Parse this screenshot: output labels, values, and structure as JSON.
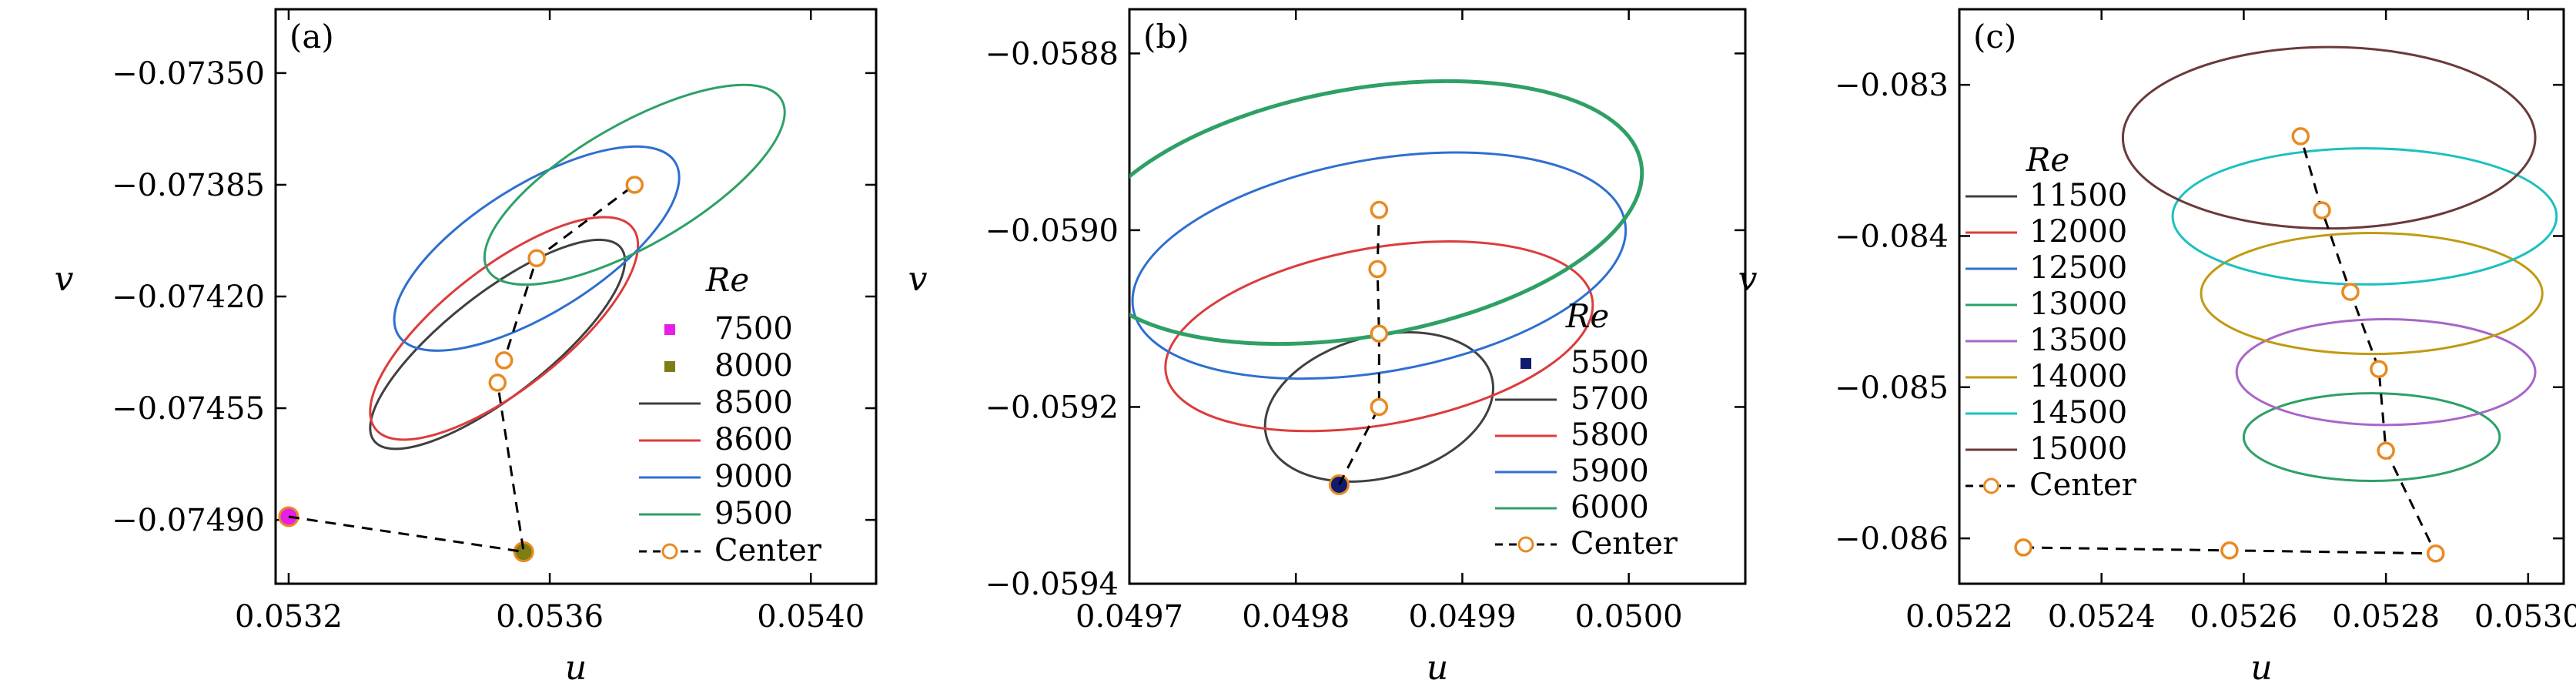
{
  "figure": {
    "center_label": "Center"
  },
  "chart_data": [
    {
      "type": "line",
      "panel_label": "(a)",
      "xlabel": "u",
      "ylabel": "v",
      "xlim": [
        0.05318,
        0.0541
      ],
      "ylim": [
        -0.0751,
        -0.0733
      ],
      "xticks": [
        0.0532,
        0.0536,
        0.054
      ],
      "xtick_labels": [
        "0.0532",
        "0.0536",
        "0.0540"
      ],
      "yticks": [
        -0.0735,
        -0.07385,
        -0.0742,
        -0.07455,
        -0.0749
      ],
      "ytick_labels": [
        "−0.07350",
        "−0.07385",
        "−0.07420",
        "−0.07455",
        "−0.07490"
      ],
      "legend_title": "Re",
      "legend_position": "bottom-right",
      "series": [
        {
          "name": "7500",
          "kind": "point",
          "color": "#e61ee6",
          "x": 0.0532,
          "y": -0.07489
        },
        {
          "name": "8000",
          "kind": "point",
          "color": "#7d7d14",
          "x": 0.05356,
          "y": -0.075
        },
        {
          "name": "8500",
          "kind": "cycle",
          "color": "#404040",
          "cx": 0.05352,
          "cy": -0.07435,
          "rx": 0.00024,
          "ry": 0.00016,
          "rotate_deg": -38
        },
        {
          "name": "8600",
          "kind": "cycle",
          "color": "#dd3c3c",
          "cx": 0.05353,
          "cy": -0.0743,
          "rx": 0.00025,
          "ry": 0.00019,
          "rotate_deg": -38
        },
        {
          "name": "9000",
          "kind": "cycle",
          "color": "#2e6fd0",
          "cx": 0.05358,
          "cy": -0.07405,
          "rx": 0.00025,
          "ry": 0.0002,
          "rotate_deg": -32
        },
        {
          "name": "9500",
          "kind": "cycle",
          "color": "#2ea066",
          "cx": 0.05373,
          "cy": -0.07385,
          "rx": 0.00026,
          "ry": 0.00019,
          "rotate_deg": -30
        }
      ],
      "center": {
        "x": [
          0.0532,
          0.05356,
          0.05352,
          0.05353,
          0.05358,
          0.05373
        ],
        "y": [
          -0.07489,
          -0.075,
          -0.07447,
          -0.0744,
          -0.07408,
          -0.07385
        ]
      }
    },
    {
      "type": "line",
      "panel_label": "(b)",
      "xlabel": "u",
      "ylabel": "v",
      "xlim": [
        0.0497,
        0.05007
      ],
      "ylim": [
        -0.0594,
        -0.05875
      ],
      "xticks": [
        0.0497,
        0.0498,
        0.0499,
        0.05
      ],
      "xtick_labels": [
        "0.0497",
        "0.0498",
        "0.0499",
        "0.0500"
      ],
      "yticks": [
        -0.0588,
        -0.059,
        -0.0592,
        -0.0594
      ],
      "ytick_labels": [
        "−0.0588",
        "−0.0590",
        "−0.0592",
        "−0.0594"
      ],
      "legend_title": "Re",
      "legend_position": "bottom-right",
      "series": [
        {
          "name": "5500",
          "kind": "point",
          "color": "#101a6e",
          "x": 0.049826,
          "y": -0.059288
        },
        {
          "name": "5700",
          "kind": "cycle",
          "color": "#404040",
          "cx": 0.04985,
          "cy": -0.0592,
          "rx": 7e-05,
          "ry": 8e-05,
          "rotate_deg": -15
        },
        {
          "name": "5800",
          "kind": "cycle",
          "color": "#dd3c3c",
          "cx": 0.04985,
          "cy": -0.05912,
          "rx": 0.00013,
          "ry": 0.0001,
          "rotate_deg": -10
        },
        {
          "name": "5900",
          "kind": "cycle",
          "color": "#2e6fd0",
          "cx": 0.04985,
          "cy": -0.05904,
          "rx": 0.00015,
          "ry": 0.00012,
          "rotate_deg": -10
        },
        {
          "name": "6000",
          "kind": "cycle",
          "color": "#2ea066",
          "cx": 0.04984,
          "cy": -0.05898,
          "rx": 0.00017,
          "ry": 0.00014,
          "rotate_deg": -10
        }
      ],
      "center": {
        "x": [
          0.049826,
          0.04985,
          0.04985,
          0.049849,
          0.04985
        ],
        "y": [
          -0.059288,
          -0.0592,
          -0.059117,
          -0.059044,
          -0.058977
        ]
      }
    },
    {
      "type": "line",
      "panel_label": "(c)",
      "xlabel": "u",
      "ylabel": "v",
      "xlim": [
        0.0522,
        0.05305
      ],
      "ylim": [
        -0.0863,
        -0.0825
      ],
      "xticks": [
        0.0522,
        0.0524,
        0.0526,
        0.0528,
        0.053
      ],
      "xtick_labels": [
        "0.0522",
        "0.0524",
        "0.0526",
        "0.0528",
        "0.0530"
      ],
      "yticks": [
        -0.083,
        -0.084,
        -0.085,
        -0.086
      ],
      "ytick_labels": [
        "−0.083",
        "−0.084",
        "−0.085",
        "−0.086"
      ],
      "legend_title": "Re",
      "legend_position": "left",
      "series": [
        {
          "name": "11500",
          "kind": "cycle",
          "color": "#404040",
          "cx": 0.05272,
          "cy": -0.08325,
          "rx": 2e-05,
          "ry": 2e-05,
          "rotate_deg": 0,
          "hidden": true
        },
        {
          "name": "12000",
          "kind": "cycle",
          "color": "#dd3c3c",
          "cx": 0.05272,
          "cy": -0.08325,
          "rx": 2e-05,
          "ry": 2e-05,
          "rotate_deg": 0,
          "hidden": true
        },
        {
          "name": "12500",
          "kind": "cycle",
          "color": "#2e6fd0",
          "cx": 0.05272,
          "cy": -0.08325,
          "rx": 2e-05,
          "ry": 2e-05,
          "rotate_deg": 0,
          "hidden": true
        },
        {
          "name": "13000",
          "kind": "cycle",
          "color": "#2ea066",
          "cx": 0.05278,
          "cy": -0.08533,
          "rx": 0.00018,
          "ry": 0.00029,
          "rotate_deg": 0
        },
        {
          "name": "13500",
          "kind": "cycle",
          "color": "#a866c8",
          "cx": 0.0528,
          "cy": -0.0849,
          "rx": 0.00021,
          "ry": 0.00035,
          "rotate_deg": 0
        },
        {
          "name": "14000",
          "kind": "cycle",
          "color": "#c19a12",
          "cx": 0.05278,
          "cy": -0.08438,
          "rx": 0.00024,
          "ry": 0.0004,
          "rotate_deg": 0
        },
        {
          "name": "14500",
          "kind": "cycle",
          "color": "#1cc0c0",
          "cx": 0.05277,
          "cy": -0.08387,
          "rx": 0.00027,
          "ry": 0.00045,
          "rotate_deg": 0
        },
        {
          "name": "15000",
          "kind": "cycle",
          "color": "#6b3a3a",
          "cx": 0.05272,
          "cy": -0.08335,
          "rx": 0.00029,
          "ry": 0.0006,
          "rotate_deg": 0
        }
      ],
      "center": {
        "x": [
          0.05229,
          0.05258,
          0.05287,
          0.0528,
          0.05279,
          0.05275,
          0.05271,
          0.05268
        ],
        "y": [
          -0.08606,
          -0.08608,
          -0.0861,
          -0.08542,
          -0.08488,
          -0.08437,
          -0.08383,
          -0.08334
        ]
      }
    }
  ]
}
